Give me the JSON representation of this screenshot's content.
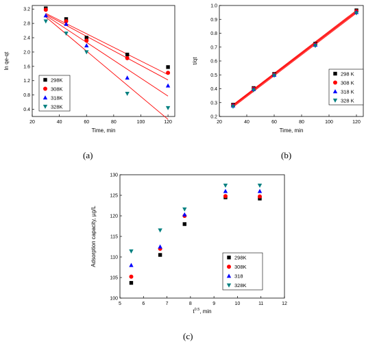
{
  "captions": {
    "a": "(a)",
    "b": "(b)",
    "c": "(c)"
  },
  "series_colors": [
    "#000000",
    "#ff0000",
    "#0000ff",
    "#008080"
  ],
  "series_markers": [
    "square",
    "circle",
    "triangle-up",
    "triangle-down"
  ],
  "fit_line_color": "#ff0000",
  "chart_data": [
    {
      "id": "a",
      "type": "scatter",
      "xlabel": "Time, min",
      "ylabel": "ln qe-qt",
      "xlim": [
        20,
        125
      ],
      "ylim": [
        0.2,
        3.3
      ],
      "xticks": [
        20,
        40,
        60,
        80,
        100,
        120
      ],
      "yticks": [
        0.4,
        0.8,
        1.2,
        1.6,
        2.0,
        2.4,
        2.8,
        3.2
      ],
      "ytick_labels": [
        "0.4",
        "0.8",
        "1.2",
        "1.6",
        "2.0",
        "2.4",
        "2.8",
        "3.2"
      ],
      "legend": "bottom-left",
      "x": [
        30,
        45,
        60,
        90,
        120
      ],
      "series": [
        {
          "name": "298K",
          "values": [
            3.22,
            2.92,
            2.4,
            1.93,
            1.58
          ],
          "fit": [
            3.08,
            1.37
          ]
        },
        {
          "name": "308K",
          "values": [
            3.18,
            2.86,
            2.32,
            1.83,
            1.42
          ],
          "fit": [
            3.05,
            1.22
          ]
        },
        {
          "name": "318K",
          "values": [
            3.02,
            2.78,
            2.18,
            1.28,
            1.06
          ],
          "fit": [
            3.02,
            0.77
          ]
        },
        {
          "name": "328K",
          "values": [
            2.86,
            2.52,
            2.0,
            0.84,
            0.44
          ],
          "fit": [
            2.98,
            0.12
          ]
        }
      ]
    },
    {
      "id": "b",
      "type": "scatter",
      "xlabel": "Time, min",
      "ylabel": "t/qt",
      "xlim": [
        20,
        125
      ],
      "ylim": [
        0.2,
        1.0
      ],
      "xticks": [
        20,
        40,
        60,
        80,
        100,
        120
      ],
      "yticks": [
        0.2,
        0.3,
        0.4,
        0.5,
        0.6,
        0.7,
        0.8,
        0.9,
        1.0
      ],
      "ytick_labels": [
        "0.2",
        "0.3",
        "0.4",
        "0.5",
        "0.6",
        "0.7",
        "0.8",
        "0.9",
        "1.0"
      ],
      "legend": "bottom-right",
      "x": [
        30,
        45,
        60,
        90,
        120
      ],
      "series": [
        {
          "name": "298 K",
          "values": [
            0.285,
            0.405,
            0.507,
            0.725,
            0.965
          ],
          "fit": [
            0.285,
            0.965
          ]
        },
        {
          "name": "308 K",
          "values": [
            0.28,
            0.4,
            0.503,
            0.72,
            0.958
          ],
          "fit": [
            0.28,
            0.958
          ]
        },
        {
          "name": "318 K",
          "values": [
            0.278,
            0.397,
            0.499,
            0.716,
            0.952
          ],
          "fit": [
            0.275,
            0.952
          ]
        },
        {
          "name": "328 K",
          "values": [
            0.272,
            0.39,
            0.495,
            0.71,
            0.945
          ],
          "fit": [
            0.268,
            0.945
          ]
        }
      ]
    },
    {
      "id": "c",
      "type": "scatter",
      "xlabel_main": "t",
      "xlabel_sup": "0.5",
      "xlabel_rest": ", min",
      "ylabel": "Adsorption capacity, µg/L",
      "xlim": [
        5,
        12
      ],
      "ylim": [
        100,
        130
      ],
      "xticks": [
        5,
        6,
        7,
        8,
        9,
        10,
        11,
        12
      ],
      "yticks": [
        100,
        105,
        110,
        115,
        120,
        125,
        130
      ],
      "ytick_labels": [
        "100",
        "105",
        "110",
        "115",
        "120",
        "125",
        "130"
      ],
      "legend": "bottom-right",
      "x": [
        5.48,
        6.71,
        7.75,
        9.49,
        10.95
      ],
      "series": [
        {
          "name": "298K",
          "values": [
            103.7,
            110.5,
            118.0,
            124.5,
            124.2
          ]
        },
        {
          "name": "308K",
          "values": [
            105.2,
            112.0,
            120.0,
            124.8,
            124.7
          ]
        },
        {
          "name": "318",
          "values": [
            108.0,
            112.5,
            120.3,
            126.0,
            126.0
          ]
        },
        {
          "name": "328K",
          "values": [
            111.4,
            116.5,
            121.6,
            127.4,
            127.4
          ]
        }
      ]
    }
  ]
}
